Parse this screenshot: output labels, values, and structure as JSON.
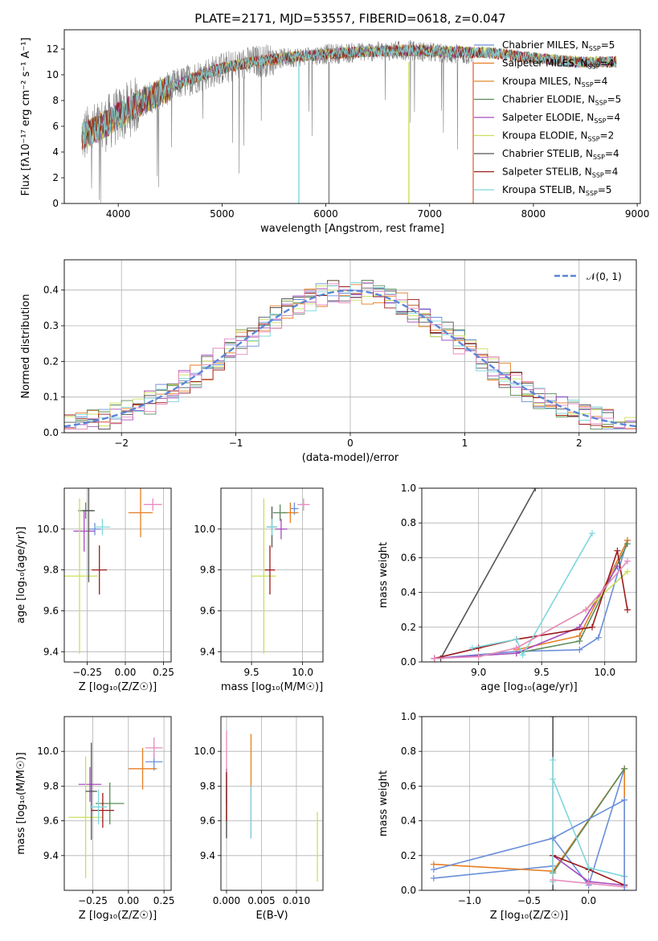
{
  "figure": {
    "title": "PLATE=2171, MJD=53557, FIBERID=0618, z=0.047"
  },
  "colors": {
    "series": [
      "#6a8fd9",
      "#e67e22",
      "#dc8a2a",
      "#5b8c5a",
      "#a64dbf",
      "#c8e05a",
      "#555555",
      "#9b1b1b",
      "#7fd7dc"
    ],
    "ref": [
      "#6a8fd9",
      "#e67e22",
      "#5b8c5a",
      "#a64dbf",
      "#c8e05a",
      "#555555",
      "#9b1b1b",
      "#7fd7dc",
      "#e88ac0"
    ],
    "gauss": "#5b86d6",
    "grid": "#b0b0b0"
  },
  "legend": [
    {
      "text": "Chabrier MILES, N",
      "sub": "SSP",
      "suffix": "=5"
    },
    {
      "text": "Salpeter MILES, N",
      "sub": "SSP",
      "suffix": "=4"
    },
    {
      "text": "Kroupa MILES, N",
      "sub": "SSP",
      "suffix": "=4"
    },
    {
      "text": "Chabrier ELODIE, N",
      "sub": "SSP",
      "suffix": "=5"
    },
    {
      "text": "Salpeter ELODIE, N",
      "sub": "SSP",
      "suffix": "=4"
    },
    {
      "text": "Kroupa ELODIE, N",
      "sub": "SSP",
      "suffix": "=2"
    },
    {
      "text": "Chabrier STELIB, N",
      "sub": "SSP",
      "suffix": "=4"
    },
    {
      "text": "Salpeter STELIB, N",
      "sub": "SSP",
      "suffix": "=4"
    },
    {
      "text": "Kroupa STELIB, N",
      "sub": "SSP",
      "suffix": "=5"
    }
  ],
  "gauss_legend": "𝒩(0, 1)",
  "chart_data": [
    {
      "id": "spectrum",
      "type": "line",
      "xlabel": "wavelength [Angstrom, rest frame]",
      "ylabel": "Flux [f",
      "ylabel_full": "Flux [fλ10⁻¹⁷ erg cm⁻² s⁻¹ A⁻¹]",
      "xlim": [
        3480,
        9030
      ],
      "ylim": [
        0,
        13.5
      ],
      "xticks": [
        4000,
        5000,
        6000,
        7000,
        8000,
        9000
      ],
      "yticks": [
        0,
        2,
        4,
        6,
        8,
        10,
        12
      ],
      "data_range": [
        3650,
        7420
      ],
      "model_range": [
        3650,
        8800
      ],
      "data_envelope": {
        "x": [
          3650,
          3800,
          4000,
          4200,
          4500,
          4800,
          5000,
          5300,
          5600,
          6000,
          6400,
          6800,
          7200,
          7420
        ],
        "y": [
          5.2,
          5.8,
          6.8,
          7.8,
          9.0,
          10.0,
          10.5,
          11.0,
          11.3,
          11.6,
          11.8,
          11.9,
          11.6,
          11.5
        ]
      },
      "model_envelope": {
        "x": [
          3650,
          3800,
          4000,
          4200,
          4500,
          4800,
          5000,
          5300,
          5600,
          6000,
          6400,
          6800,
          7200,
          7600,
          8000,
          8400,
          8800
        ],
        "y": [
          5.2,
          5.8,
          6.8,
          7.8,
          9.0,
          10.0,
          10.5,
          11.0,
          11.3,
          11.6,
          11.8,
          11.9,
          11.8,
          11.7,
          11.3,
          11.0,
          11.0
        ]
      }
    },
    {
      "id": "residuals",
      "type": "histogram",
      "xlabel": "(data-model)/error",
      "ylabel": "Normed distribution",
      "xlim": [
        -2.5,
        2.5
      ],
      "ylim": [
        0,
        0.485
      ],
      "xticks": [
        -2,
        -1,
        0,
        1,
        2
      ],
      "yticks": [
        0.0,
        0.1,
        0.2,
        0.3,
        0.4
      ],
      "bin_width": 0.1
    },
    {
      "id": "age-vs-Z",
      "type": "errorbar",
      "xlabel": "Z [log₁₀(Z/Z☉)]",
      "ylabel": "age  [log₁₀(age/yr)]",
      "xlim": [
        -0.4,
        0.3
      ],
      "ylim": [
        9.35,
        10.2
      ],
      "xticks": [
        -0.25,
        0.0,
        0.25
      ],
      "yticks": [
        9.4,
        9.6,
        9.8,
        10.0
      ],
      "points": [
        {
          "x": -0.2,
          "y": 10.0,
          "ex": 0.04,
          "ey": 0.03
        },
        {
          "x": 0.1,
          "y": 10.08,
          "ex": 0.08,
          "ey": 0.12
        },
        {
          "x": -0.26,
          "y": 10.09,
          "ex": 0.05,
          "ey": 0.04
        },
        {
          "x": -0.27,
          "y": 9.99,
          "ex": 0.07,
          "ey": 0.1
        },
        {
          "x": -0.3,
          "y": 9.77,
          "ex": 0.12,
          "ey": 0.38
        },
        {
          "x": -0.24,
          "y": 10.09,
          "ex": 0.04,
          "ey": 0.35
        },
        {
          "x": -0.17,
          "y": 9.8,
          "ex": 0.05,
          "ey": 0.12
        },
        {
          "x": -0.15,
          "y": 10.01,
          "ex": 0.05,
          "ey": 0.04
        },
        {
          "x": 0.18,
          "y": 10.12,
          "ex": 0.06,
          "ey": 0.03
        }
      ]
    },
    {
      "id": "age-vs-mass",
      "type": "errorbar",
      "xlabel": "mass [log₁₀(M/M☉)]",
      "ylabel": "",
      "xlim": [
        9.2,
        10.2
      ],
      "ylim": [
        9.35,
        10.2
      ],
      "xticks": [
        9.5,
        10.0
      ],
      "yticks": [
        9.4,
        9.6,
        9.8,
        10.0
      ],
      "points": [
        {
          "x": 9.92,
          "y": 10.1,
          "ex": 0.04,
          "ey": 0.03
        },
        {
          "x": 9.88,
          "y": 10.08,
          "ex": 0.08,
          "ey": 0.05
        },
        {
          "x": 9.78,
          "y": 10.08,
          "ex": 0.07,
          "ey": 0.04
        },
        {
          "x": 9.79,
          "y": 10.0,
          "ex": 0.06,
          "ey": 0.05
        },
        {
          "x": 9.62,
          "y": 9.77,
          "ex": 0.12,
          "ey": 0.38
        },
        {
          "x": 9.7,
          "y": 10.01,
          "ex": 0.05,
          "ey": 0.1
        },
        {
          "x": 9.68,
          "y": 9.8,
          "ex": 0.05,
          "ey": 0.12
        },
        {
          "x": 9.7,
          "y": 10.01,
          "ex": 0.05,
          "ey": 0.04
        },
        {
          "x": 10.01,
          "y": 10.12,
          "ex": 0.06,
          "ey": 0.03
        }
      ]
    },
    {
      "id": "massweight-vs-age",
      "type": "line",
      "xlabel": "age  [log₁₀(age/yr)]",
      "ylabel": "mass weight",
      "xlim": [
        8.55,
        10.25
      ],
      "ylim": [
        0,
        1.0
      ],
      "xticks": [
        9.0,
        9.5,
        10.0
      ],
      "yticks": [
        0.0,
        0.2,
        0.4,
        0.6,
        0.8,
        1.0
      ],
      "series": [
        {
          "x": [
            8.65,
            9.3,
            9.8,
            9.95,
            10.18
          ],
          "y": [
            0.02,
            0.06,
            0.07,
            0.14,
            0.7
          ]
        },
        {
          "x": [
            9.3,
            9.8,
            10.18
          ],
          "y": [
            0.07,
            0.15,
            0.7
          ]
        },
        {
          "x": [
            9.3,
            9.8,
            10.18
          ],
          "y": [
            0.05,
            0.12,
            0.68
          ]
        },
        {
          "x": [
            8.65,
            9.3,
            9.8,
            10.1
          ],
          "y": [
            0.02,
            0.05,
            0.2,
            0.55
          ]
        },
        {
          "x": [
            9.0,
            9.3,
            9.85,
            10.18
          ],
          "y": [
            0.03,
            0.08,
            0.3,
            0.52
          ]
        },
        {
          "x": [
            8.7,
            9.45
          ],
          "y": [
            0.02,
            1.0
          ]
        },
        {
          "x": [
            8.65,
            9.0,
            9.3,
            9.9,
            10.1,
            10.18
          ],
          "y": [
            0.02,
            0.08,
            0.13,
            0.2,
            0.64,
            0.3
          ]
        },
        {
          "x": [
            8.95,
            9.3,
            9.35,
            9.9
          ],
          "y": [
            0.08,
            0.13,
            0.04,
            0.74
          ]
        },
        {
          "x": [
            8.65,
            9.0,
            9.3,
            9.85,
            10.18
          ],
          "y": [
            0.02,
            0.03,
            0.08,
            0.3,
            0.58
          ]
        }
      ]
    },
    {
      "id": "mass-vs-Z",
      "type": "errorbar",
      "xlabel": "Z [log₁₀(Z/Z☉)]",
      "ylabel": "mass [log₁₀(M/M☉)]",
      "xlim": [
        -0.45,
        0.3
      ],
      "ylim": [
        9.2,
        10.2
      ],
      "xticks": [
        -0.25,
        0.0,
        0.25
      ],
      "yticks": [
        9.4,
        9.6,
        9.8,
        10.0
      ],
      "points": [
        {
          "x": 0.18,
          "y": 9.94,
          "ex": 0.06,
          "ey": 0.05
        },
        {
          "x": 0.1,
          "y": 9.9,
          "ex": 0.1,
          "ey": 0.12
        },
        {
          "x": -0.13,
          "y": 9.7,
          "ex": 0.1,
          "ey": 0.12
        },
        {
          "x": -0.27,
          "y": 9.81,
          "ex": 0.08,
          "ey": 0.1
        },
        {
          "x": -0.3,
          "y": 9.62,
          "ex": 0.12,
          "ey": 0.35
        },
        {
          "x": -0.26,
          "y": 9.77,
          "ex": 0.04,
          "ey": 0.28
        },
        {
          "x": -0.18,
          "y": 9.66,
          "ex": 0.08,
          "ey": 0.1
        },
        {
          "x": -0.21,
          "y": 9.68,
          "ex": 0.06,
          "ey": 0.1
        },
        {
          "x": 0.18,
          "y": 10.02,
          "ex": 0.06,
          "ey": 0.06
        }
      ]
    },
    {
      "id": "mass-vs-EBV",
      "type": "errorbar",
      "xlabel": "E(B-V)",
      "ylabel": "",
      "xlim": [
        -0.0008,
        0.0138
      ],
      "ylim": [
        9.2,
        10.2
      ],
      "xticks": [
        0.0,
        0.005,
        0.01
      ],
      "xticklabels": [
        "0.000",
        "0.005",
        "0.010"
      ],
      "yticks": [
        9.4,
        9.6,
        9.8,
        10.0
      ],
      "points": [
        {
          "x": 0.0,
          "y": 9.8,
          "ex": 0.0,
          "ey": 0.1
        },
        {
          "x": 0.0035,
          "y": 9.95,
          "ex": 0.0,
          "ey": 0.15
        },
        {
          "x": 0.0,
          "y": 9.65,
          "ex": 0.0,
          "ey": 0.15
        },
        {
          "x": 0.0035,
          "y": 9.65,
          "ex": 0.0,
          "ey": 0.15
        },
        {
          "x": 0.013,
          "y": 9.45,
          "ex": 0.0,
          "ey": 0.2
        },
        {
          "x": 0.0,
          "y": 9.7,
          "ex": 0.0,
          "ey": 0.2
        },
        {
          "x": 0.0,
          "y": 9.75,
          "ex": 0.0,
          "ey": 0.15
        },
        {
          "x": 0.0035,
          "y": 9.65,
          "ex": 0.0,
          "ey": 0.15
        },
        {
          "x": 0.0,
          "y": 10.0,
          "ex": 0.0,
          "ey": 0.12
        }
      ]
    },
    {
      "id": "massweight-vs-Z",
      "type": "line",
      "xlabel": "Z [log₁₀(Z/Z☉)]",
      "ylabel": "mass weight",
      "xlim": [
        -1.4,
        0.4
      ],
      "ylim": [
        0,
        1.0
      ],
      "xticks": [
        -1.0,
        -0.5,
        0.0
      ],
      "yticks": [
        0.0,
        0.2,
        0.4,
        0.6,
        0.8,
        1.0
      ],
      "series": [
        {
          "x": [
            -1.3,
            -0.3,
            -0.3,
            0.0,
            0.3
          ],
          "y": [
            0.07,
            0.14,
            0.3,
            0.03,
            0.7
          ]
        },
        {
          "x": [
            -1.3,
            -0.3,
            0.3,
            0.3
          ],
          "y": [
            0.15,
            0.11,
            0.7,
            0.08
          ]
        },
        {
          "x": [
            -0.3,
            0.3
          ],
          "y": [
            0.1,
            0.7
          ]
        },
        {
          "x": [
            -0.3,
            0.0,
            0.3
          ],
          "y": [
            0.2,
            0.05,
            0.03
          ]
        },
        {
          "x": [
            -0.3,
            -0.3
          ],
          "y": [
            0.05,
            0.3
          ]
        },
        {
          "x": [
            -0.3,
            -0.3
          ],
          "y": [
            0.0,
            1.0
          ]
        },
        {
          "x": [
            -0.3,
            0.0,
            0.3
          ],
          "y": [
            0.2,
            0.12,
            0.03
          ]
        },
        {
          "x": [
            -0.3,
            -0.3,
            -0.3,
            0.0,
            0.3
          ],
          "y": [
            0.05,
            0.75,
            0.64,
            0.13,
            0.08
          ]
        },
        {
          "x": [
            -0.3,
            0.0,
            0.3
          ],
          "y": [
            0.06,
            0.04,
            0.02
          ]
        }
      ],
      "extra": {
        "x": [
          -1.3,
          -0.3,
          0.3,
          0.3
        ],
        "y": [
          0.12,
          0.3,
          0.52,
          0.0
        ]
      }
    }
  ]
}
